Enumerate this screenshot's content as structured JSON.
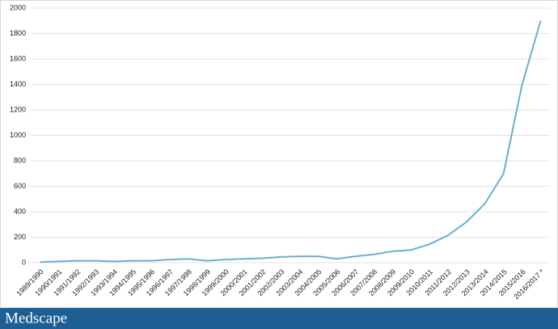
{
  "chart_data": {
    "type": "line",
    "categories": [
      "1989/1990",
      "1990/1991",
      "1991/1992",
      "1992/1993",
      "1993/1994",
      "1994/1995",
      "1995/1996",
      "1996/1997",
      "1997/1998",
      "1998/1999",
      "1999/2000",
      "2000/2001",
      "2001/2002",
      "2002/2003",
      "2003/2004",
      "2004/2005",
      "2005/2006",
      "2006/2007",
      "2007/2008",
      "2008/2009",
      "2009/2010",
      "2010/2011",
      "2011/2012",
      "2012/2013",
      "2013/2014",
      "2014/2015",
      "2015/2016",
      "2016/2017 *"
    ],
    "series": [
      {
        "color": "#6aaed3",
        "values": [
          5,
          10,
          15,
          15,
          10,
          15,
          15,
          25,
          30,
          15,
          25,
          30,
          35,
          45,
          50,
          50,
          30,
          50,
          65,
          90,
          100,
          145,
          215,
          320,
          465,
          700,
          1400,
          1900
        ]
      }
    ],
    "ylim": [
      0,
      2000
    ],
    "yticks": [
      0,
      200,
      400,
      600,
      800,
      1000,
      1200,
      1400,
      1600,
      1800,
      2000
    ],
    "grid": true
  },
  "footer": {
    "brand": "Medscape"
  }
}
